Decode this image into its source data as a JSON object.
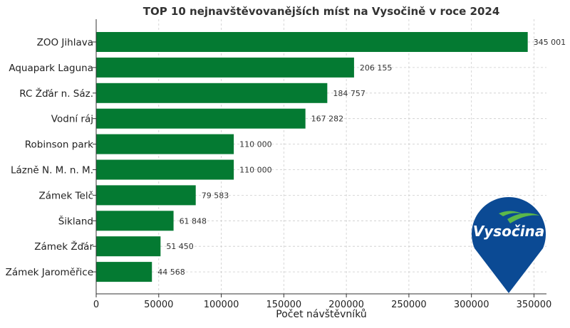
{
  "chart_data": {
    "type": "bar",
    "orientation": "horizontal",
    "title": "TOP 10 nejnavštěvovanějších míst na Vysočině v roce 2024",
    "xlabel": "Počet návštěvníků",
    "ylabel": "",
    "xlim": [
      0,
      360000
    ],
    "xticks": [
      0,
      50000,
      100000,
      150000,
      200000,
      250000,
      300000,
      350000
    ],
    "grid": true,
    "bar_color": "#047a32",
    "categories": [
      "ZOO Jihlava",
      "Aquapark Laguna",
      "RC Žďár n. Sáz.",
      "Vodní ráj",
      "Robinson park",
      "Lázně N. M. n. M.",
      "Zámek Telč",
      "Šikland",
      "Zámek Žďár",
      "Zámek Jaroměřice"
    ],
    "values": [
      345001,
      206155,
      184757,
      167282,
      110000,
      110000,
      79583,
      61848,
      51450,
      44568
    ],
    "value_labels": [
      "345 001",
      "206 155",
      "184 757",
      "167 282",
      "110 000",
      "110 000",
      "79 583",
      "61 848",
      "51 450",
      "44 568"
    ]
  },
  "logo": {
    "text": "Vysočina",
    "background_color": "#0b4a94",
    "accent_color": "#5cb84a"
  }
}
